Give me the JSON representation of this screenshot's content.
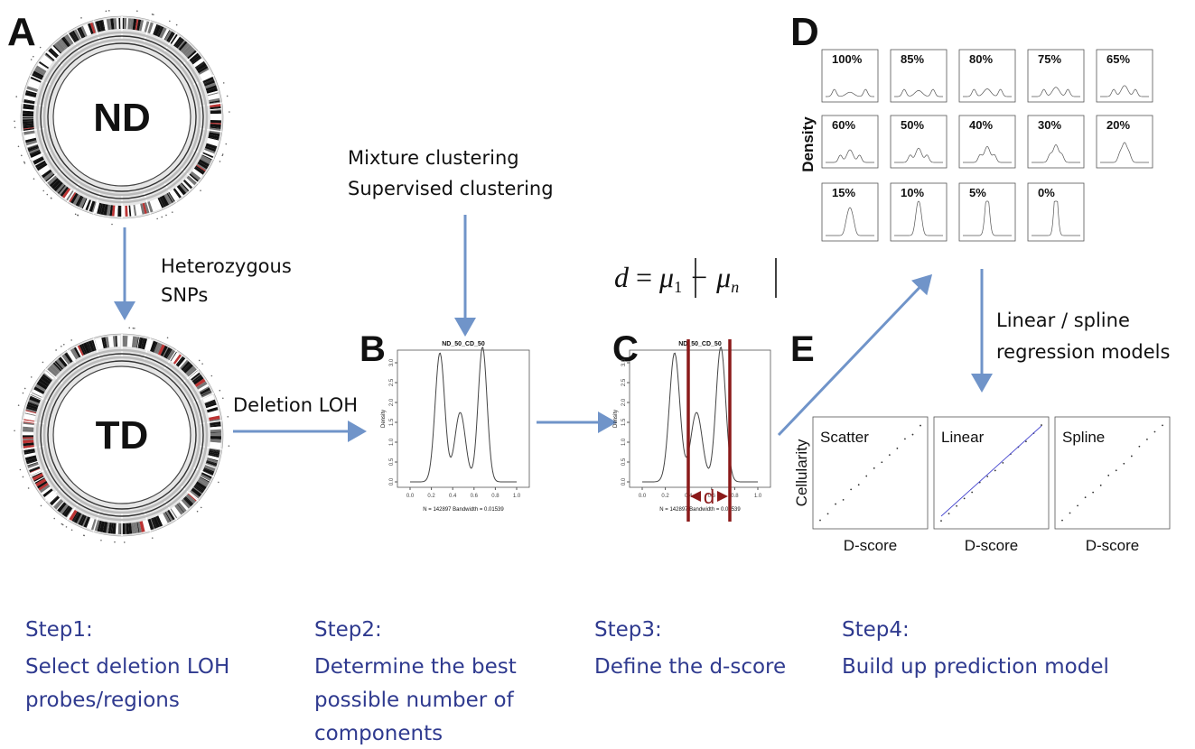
{
  "panel_a": {
    "letter": "A",
    "top_label": "ND",
    "bottom_label": "TD",
    "arrow_label": [
      "Heterozygous",
      "SNPs"
    ]
  },
  "deletion_label": "Deletion LOH",
  "clustering_label": [
    "Mixture clustering",
    "Supervised clustering"
  ],
  "panel_b": {
    "letter": "B",
    "plot_title": "ND_50_CD_50",
    "y_label": "Density",
    "x_ticks": [
      "0.0",
      "0.2",
      "0.4",
      "0.6",
      "0.8",
      "1.0"
    ],
    "y_ticks": [
      "0.0",
      "0.5",
      "1.0",
      "1.5",
      "2.0",
      "2.5",
      "3.0"
    ],
    "caption": "N = 142897   Bandwidth = 0.01539"
  },
  "panel_c": {
    "letter": "C",
    "plot_title": "ND_50_CD_50",
    "y_label": "Density",
    "x_ticks": [
      "0.0",
      "0.2",
      "0.4",
      "0.6",
      "0.8",
      "1.0"
    ],
    "y_ticks": [
      "0.0",
      "0.5",
      "1.0",
      "1.5",
      "2.0",
      "2.5",
      "3.0"
    ],
    "caption": "N = 142897   Bandwidth = 0.01539",
    "d_label": "d"
  },
  "formula": {
    "lhs": "d",
    "equals": "=",
    "mu1": "μ",
    "sub1": "1",
    "minus": "−",
    "mun": "μ",
    "subn": "n"
  },
  "panel_d": {
    "letter": "D",
    "y_label": "Density",
    "panels": [
      "100%",
      "85%",
      "80%",
      "75%",
      "65%",
      "60%",
      "50%",
      "40%",
      "30%",
      "20%",
      "15%",
      "10%",
      "5%",
      "0%"
    ]
  },
  "regression_label": [
    "Linear / spline",
    "regression models"
  ],
  "panel_e": {
    "letter": "E",
    "y_label": "Cellularity",
    "panels": [
      {
        "label": "Scatter",
        "x_label": "D-score"
      },
      {
        "label": "Linear",
        "x_label": "D-score"
      },
      {
        "label": "Spline",
        "x_label": "D-score"
      }
    ]
  },
  "steps": [
    {
      "title": "Step1:",
      "lines": [
        "Select deletion LOH",
        "probes/regions"
      ]
    },
    {
      "title": "Step2:",
      "lines": [
        "Determine the best",
        "possible number of",
        "components"
      ]
    },
    {
      "title": "Step3:",
      "lines": [
        "Define the d-score"
      ]
    },
    {
      "title": "Step4:",
      "lines": [
        "Build up prediction model"
      ]
    }
  ]
}
